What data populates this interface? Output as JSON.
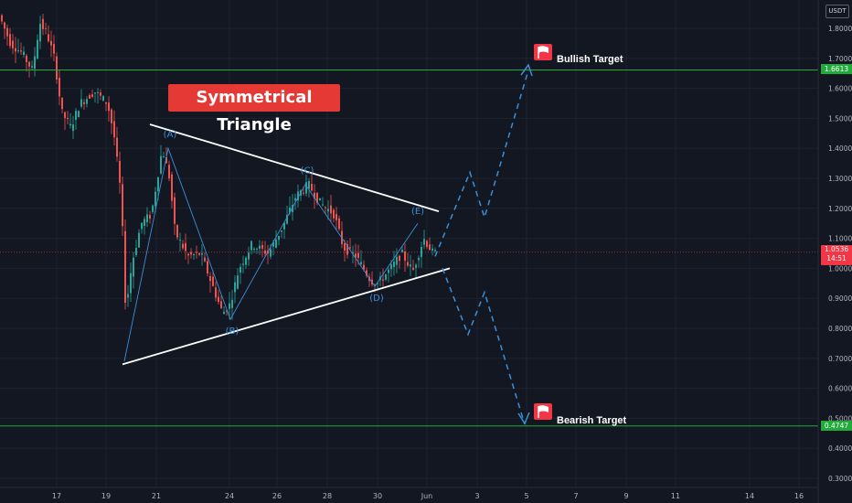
{
  "chart_data": {
    "type": "candlestick",
    "title": "Symmetrical Triangle",
    "currency": "USDT",
    "y_ticks": [
      "1.8000",
      "1.7000",
      "1.6000",
      "1.5000",
      "1.4000",
      "1.3000",
      "1.2000",
      "1.1000",
      "1.0000",
      "0.9000",
      "0.8000",
      "0.7000",
      "0.6000",
      "0.5000",
      "0.4000",
      "0.3000"
    ],
    "x_ticks": [
      "17",
      "19",
      "21",
      "24",
      "26",
      "28",
      "30",
      "Jun",
      "3",
      "5",
      "7",
      "9",
      "11",
      "14",
      "16"
    ],
    "ylim": [
      0.28,
      1.87
    ],
    "current_price": "1.0536",
    "countdown": "14:51",
    "levels": [
      {
        "name": "Bullish Target",
        "price": 1.6613,
        "label": "1.6613",
        "color": "#22ab3a"
      },
      {
        "name": "Bearish Target",
        "price": 0.4747,
        "label": "0.4747",
        "color": "#22ab3a"
      }
    ],
    "wave_points": [
      {
        "label": "(A)",
        "price": 1.4
      },
      {
        "label": "(B)",
        "price": 0.83
      },
      {
        "label": "(C)",
        "price": 1.28
      },
      {
        "label": "(D)",
        "price": 0.94
      },
      {
        "label": "(E)",
        "price": 1.15
      }
    ],
    "triangle": {
      "upper": [
        1.48,
        1.19
      ],
      "lower": [
        0.68,
        1.0
      ]
    },
    "bullish_path": [
      1.04,
      1.32,
      1.17,
      1.66
    ],
    "bearish_path": [
      1.0,
      0.78,
      0.92,
      0.48
    ]
  }
}
